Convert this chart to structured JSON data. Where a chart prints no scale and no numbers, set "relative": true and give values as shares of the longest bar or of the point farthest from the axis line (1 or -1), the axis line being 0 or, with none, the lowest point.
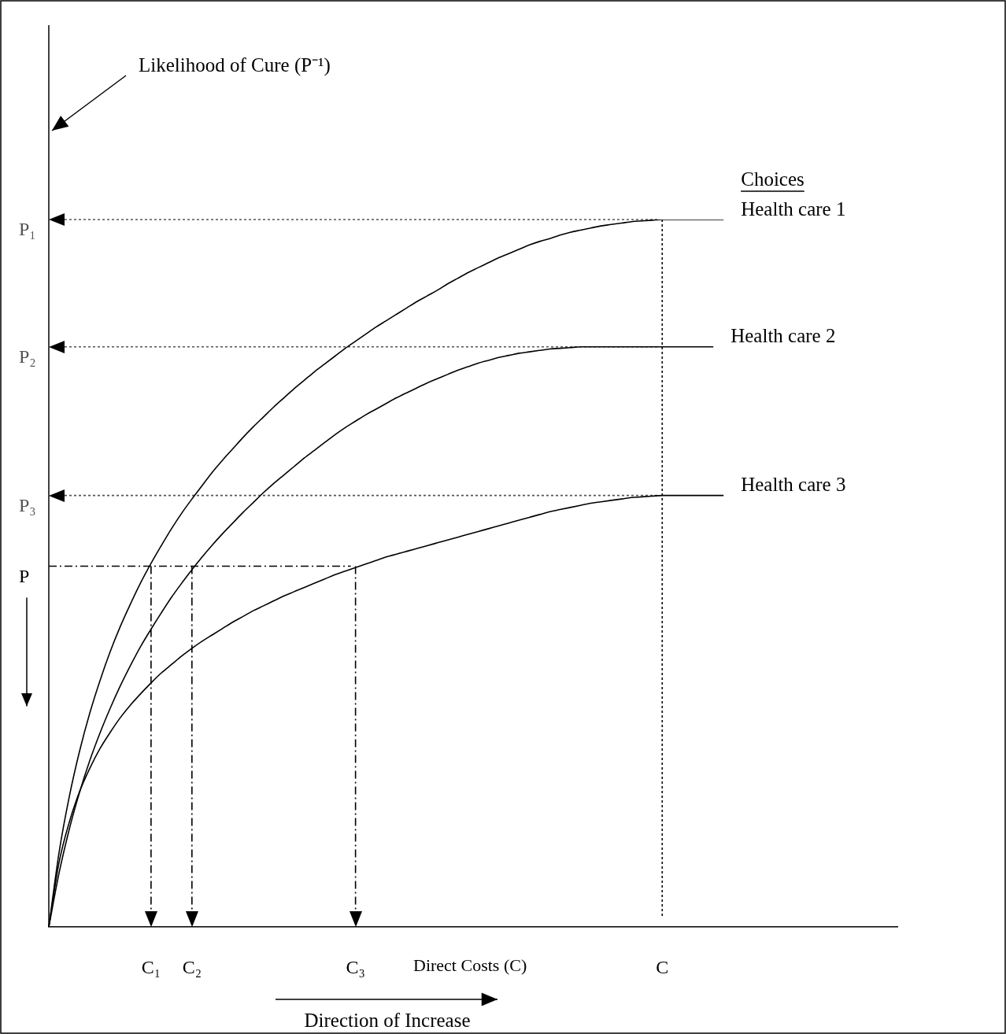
{
  "chart_data": {
    "type": "line",
    "relative": true,
    "legend": "right",
    "marker": "none",
    "line_style": "solid",
    "categories": [
      null,
      null,
      null,
      null,
      null,
      null,
      null,
      null,
      null,
      null,
      "C₁",
      null,
      null,
      null,
      "C₂",
      null,
      null,
      null,
      null,
      null,
      null,
      null,
      null,
      null,
      null,
      null,
      null,
      null,
      null,
      null,
      "C₃",
      null,
      null,
      null,
      null,
      null,
      null,
      null,
      null,
      null,
      null,
      null,
      null,
      null,
      null,
      null,
      null,
      null,
      null,
      null,
      null,
      null,
      null,
      null,
      null,
      null,
      null,
      null,
      null,
      null,
      "C",
      null,
      null,
      null,
      null,
      null,
      null,
      null,
      null,
      null,
      null,
      null,
      null,
      null,
      null,
      null,
      null,
      null,
      null,
      null,
      null,
      null,
      null,
      null
    ],
    "xlabel": "Direct Costs (C)",
    "legend_title": "Choices",
    "annotations": [
      "Likelihood of Cure (P⁻¹)",
      "Direction of Increase"
    ],
    "series": [
      {
        "name": "Health care 1",
        "color": "#000000",
        "values": [
          0,
          0.105,
          0.184,
          0.248,
          0.302,
          0.348,
          0.389,
          0.425,
          0.457,
          0.487,
          0.514,
          0.539,
          0.563,
          0.585,
          0.605,
          0.624,
          0.643,
          0.66,
          0.676,
          0.692,
          0.707,
          0.721,
          0.735,
          0.748,
          0.761,
          0.773,
          0.785,
          0.796,
          0.807,
          0.818,
          0.828,
          0.838,
          0.848,
          0.857,
          0.866,
          0.875,
          0.884,
          0.892,
          0.9,
          0.909,
          0.917,
          0.925,
          0.932,
          0.939,
          0.946,
          0.952,
          0.958,
          0.964,
          0.969,
          0.973,
          0.978,
          0.982,
          0.985,
          0.988,
          0.991,
          0.993,
          0.995,
          0.997,
          0.998,
          0.999,
          1,
          1,
          1,
          1,
          1,
          1,
          1,
          null,
          null,
          null,
          null,
          null,
          null,
          null,
          null,
          null,
          null,
          null,
          null,
          null,
          null,
          null,
          null,
          null
        ]
      },
      {
        "name": "Health care 2",
        "color": "#000000",
        "values": [
          0,
          0.076,
          0.138,
          0.19,
          0.235,
          0.274,
          0.309,
          0.341,
          0.37,
          0.397,
          0.421,
          0.444,
          0.466,
          0.486,
          0.505,
          0.523,
          0.54,
          0.556,
          0.571,
          0.586,
          0.6,
          0.614,
          0.627,
          0.639,
          0.651,
          0.663,
          0.674,
          0.685,
          0.696,
          0.706,
          0.715,
          0.724,
          0.732,
          0.74,
          0.748,
          0.755,
          0.762,
          0.769,
          0.775,
          0.781,
          0.787,
          0.792,
          0.797,
          0.801,
          0.805,
          0.808,
          0.811,
          0.813,
          0.815,
          0.817,
          0.818,
          0.819,
          0.82,
          0.82,
          0.82,
          0.82,
          0.82,
          0.82,
          0.82,
          0.82,
          0.82,
          0.82,
          0.82,
          0.82,
          0.82,
          0.82,
          null,
          null,
          null,
          null,
          null,
          null,
          null,
          null,
          null,
          null,
          null,
          null,
          null,
          null,
          null,
          null,
          null,
          null
        ]
      },
      {
        "name": "Health care 3",
        "color": "#000000",
        "values": [
          0,
          0.091,
          0.148,
          0.191,
          0.224,
          0.252,
          0.275,
          0.296,
          0.314,
          0.33,
          0.345,
          0.359,
          0.371,
          0.383,
          0.394,
          0.404,
          0.413,
          0.422,
          0.431,
          0.439,
          0.447,
          0.454,
          0.461,
          0.468,
          0.474,
          0.48,
          0.486,
          0.492,
          0.498,
          0.503,
          0.508,
          0.513,
          0.518,
          0.523,
          0.527,
          0.531,
          0.535,
          0.539,
          0.543,
          0.547,
          0.551,
          0.555,
          0.559,
          0.563,
          0.567,
          0.571,
          0.575,
          0.579,
          0.583,
          0.587,
          0.59,
          0.593,
          0.596,
          0.599,
          0.601,
          0.603,
          0.605,
          0.607,
          0.608,
          0.609,
          0.61,
          0.61,
          0.61,
          0.61,
          0.61,
          0.61,
          0.61,
          null,
          null,
          null,
          null,
          null,
          null,
          null,
          null,
          null,
          null,
          null,
          null,
          null,
          null,
          null,
          null,
          null
        ]
      }
    ],
    "ref_lines": [
      {
        "axis": "y",
        "value": 1,
        "label": "P₁",
        "line_style": "dotted",
        "color": "#555555"
      },
      {
        "axis": "y",
        "value": 0.82,
        "label": "P₂",
        "line_style": "dotted",
        "color": "#555555"
      },
      {
        "axis": "y",
        "value": 0.61,
        "label": "P₃",
        "line_style": "dotted",
        "color": "#555555"
      },
      {
        "axis": "y",
        "value": 0.51,
        "label": "P",
        "line_style": "dashed"
      },
      {
        "axis": "x",
        "value": "C₁",
        "line_style": "dashed"
      },
      {
        "axis": "x",
        "value": "C₂",
        "line_style": "dashed"
      },
      {
        "axis": "x",
        "value": "C₃",
        "line_style": "dashed"
      },
      {
        "axis": "x",
        "value": "C",
        "line_style": "dotted"
      }
    ]
  }
}
